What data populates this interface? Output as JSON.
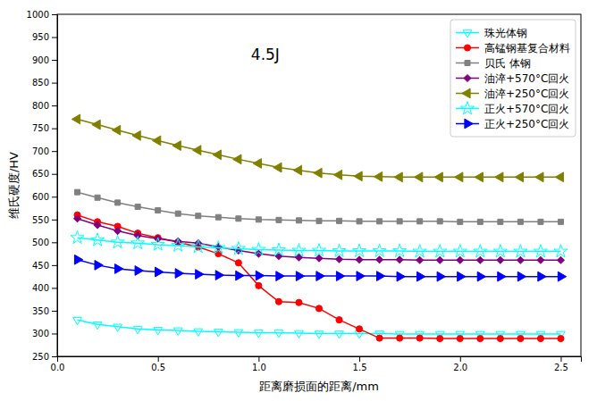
{
  "chart_data": {
    "type": "line",
    "title": "4.5J",
    "x_label": "距离磨损面的距离/mm",
    "y_label": "维氏硬度/HV",
    "xlim": [
      0.0,
      2.6
    ],
    "ylim": [
      250,
      1000
    ],
    "xticks": [
      {
        "value": 0.0,
        "label": "0.0"
      },
      0.5,
      {
        "value": 1.0,
        "label": "1.0"
      },
      1.5,
      {
        "value": 2.0,
        "label": "2.0"
      },
      2.5
    ],
    "yticks": [
      250,
      300,
      350,
      400,
      450,
      500,
      550,
      600,
      650,
      700,
      750,
      800,
      850,
      900,
      950,
      1000
    ],
    "grid": false,
    "legend": "upper right",
    "x": [
      0.1,
      0.2,
      0.3,
      0.4,
      0.5,
      0.6,
      0.7,
      0.8,
      0.9,
      1.0,
      1.1,
      1.2,
      1.3,
      1.4,
      1.5,
      1.6,
      1.7,
      1.8,
      1.9,
      2.0,
      2.1,
      2.2,
      2.3,
      2.4,
      2.5
    ],
    "series": [
      {
        "name": "珠光体钢",
        "color": "cyan",
        "marker": "triangle-down-open",
        "values": [
          330,
          320,
          315,
          310,
          308,
          307,
          305,
          304,
          303,
          302,
          302,
          301,
          300,
          300,
          300,
          300,
          299,
          299,
          299,
          299,
          299,
          299,
          299,
          299,
          299
        ]
      },
      {
        "name": "高锰钢基复合材料",
        "color": "red",
        "marker": "circle",
        "values": [
          560,
          545,
          535,
          520,
          510,
          500,
          490,
          475,
          455,
          405,
          370,
          368,
          355,
          330,
          310,
          290,
          290,
          290,
          289,
          289,
          289,
          289,
          289,
          289,
          289
        ]
      },
      {
        "name": "贝氏 体钢",
        "color": "#808080",
        "marker": "square",
        "values": [
          610,
          598,
          587,
          578,
          570,
          563,
          558,
          555,
          552,
          550,
          549,
          548,
          547,
          547,
          546,
          546,
          546,
          546,
          546,
          545,
          545,
          545,
          545,
          545,
          545
        ]
      },
      {
        "name": "油淬+570°C回火",
        "color": "#800080",
        "marker": "diamond",
        "values": [
          552,
          538,
          525,
          515,
          508,
          502,
          498,
          490,
          482,
          475,
          470,
          467,
          465,
          463,
          462,
          462,
          462,
          461,
          461,
          461,
          461,
          461,
          461,
          461,
          461
        ]
      },
      {
        "name": "油淬+250°C回火",
        "color": "#808000",
        "marker": "triangle-left",
        "values": [
          770,
          758,
          746,
          734,
          723,
          712,
          702,
          692,
          682,
          673,
          664,
          658,
          652,
          648,
          645,
          644,
          643,
          643,
          643,
          643,
          643,
          643,
          643,
          643,
          643
        ]
      },
      {
        "name": "正火+570°C回火",
        "color": "cyan",
        "marker": "star-open",
        "values": [
          510,
          505,
          500,
          498,
          495,
          493,
          490,
          488,
          486,
          484,
          483,
          482,
          482,
          481,
          481,
          481,
          481,
          480,
          480,
          480,
          480,
          480,
          480,
          480,
          480
        ]
      },
      {
        "name": "正火+250°C回火",
        "color": "blue",
        "marker": "triangle-right",
        "values": [
          462,
          450,
          442,
          438,
          435,
          432,
          430,
          428,
          427,
          427,
          426,
          426,
          426,
          426,
          426,
          426,
          425,
          425,
          425,
          425,
          425,
          425,
          425,
          425,
          425
        ]
      }
    ]
  }
}
